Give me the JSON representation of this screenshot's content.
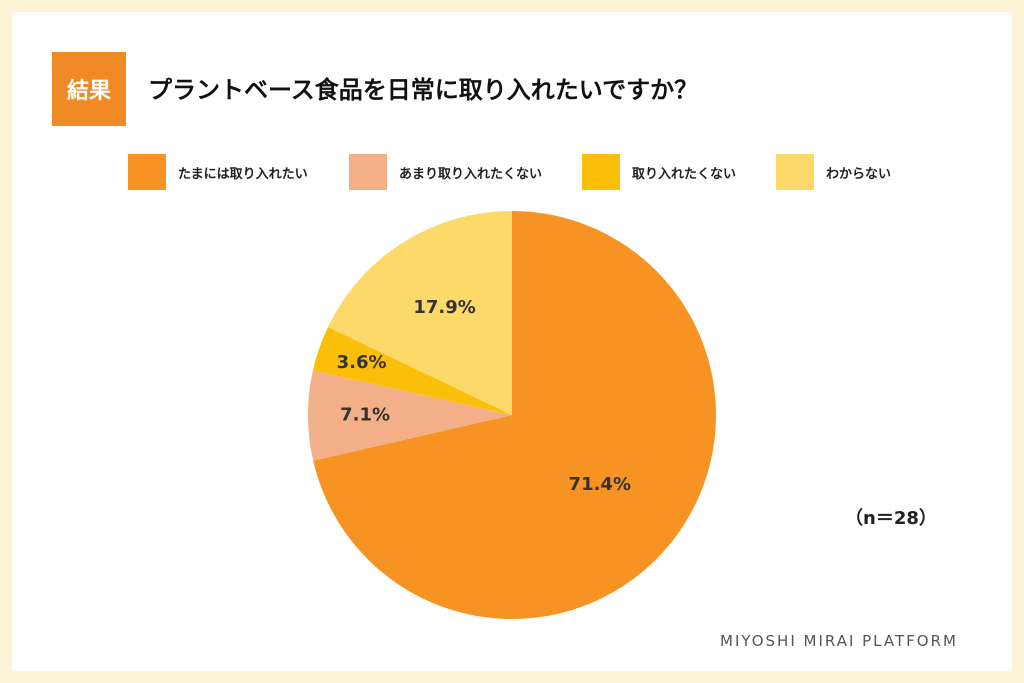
{
  "badge": "結果",
  "title": "プラントベース食品を日常に取り入れたいですか？",
  "sample_size": "（n＝28）",
  "footer": "MIYOSHI MIRAI PLATFORM",
  "chart_data": {
    "type": "pie",
    "categories": [
      "たまには取り入れたい",
      "あまり取り入れたくない",
      "取り入れたくない",
      "わからない"
    ],
    "values": [
      71.4,
      7.1,
      3.6,
      17.9
    ],
    "value_labels": [
      "71.4%",
      "7.1%",
      "3.6%",
      "17.9%"
    ],
    "colors": [
      "#f69322",
      "#f3b088",
      "#fbbf0a",
      "#fdd96a"
    ],
    "start_angle_deg": 0,
    "direction": "clockwise",
    "legend_position": "top"
  }
}
